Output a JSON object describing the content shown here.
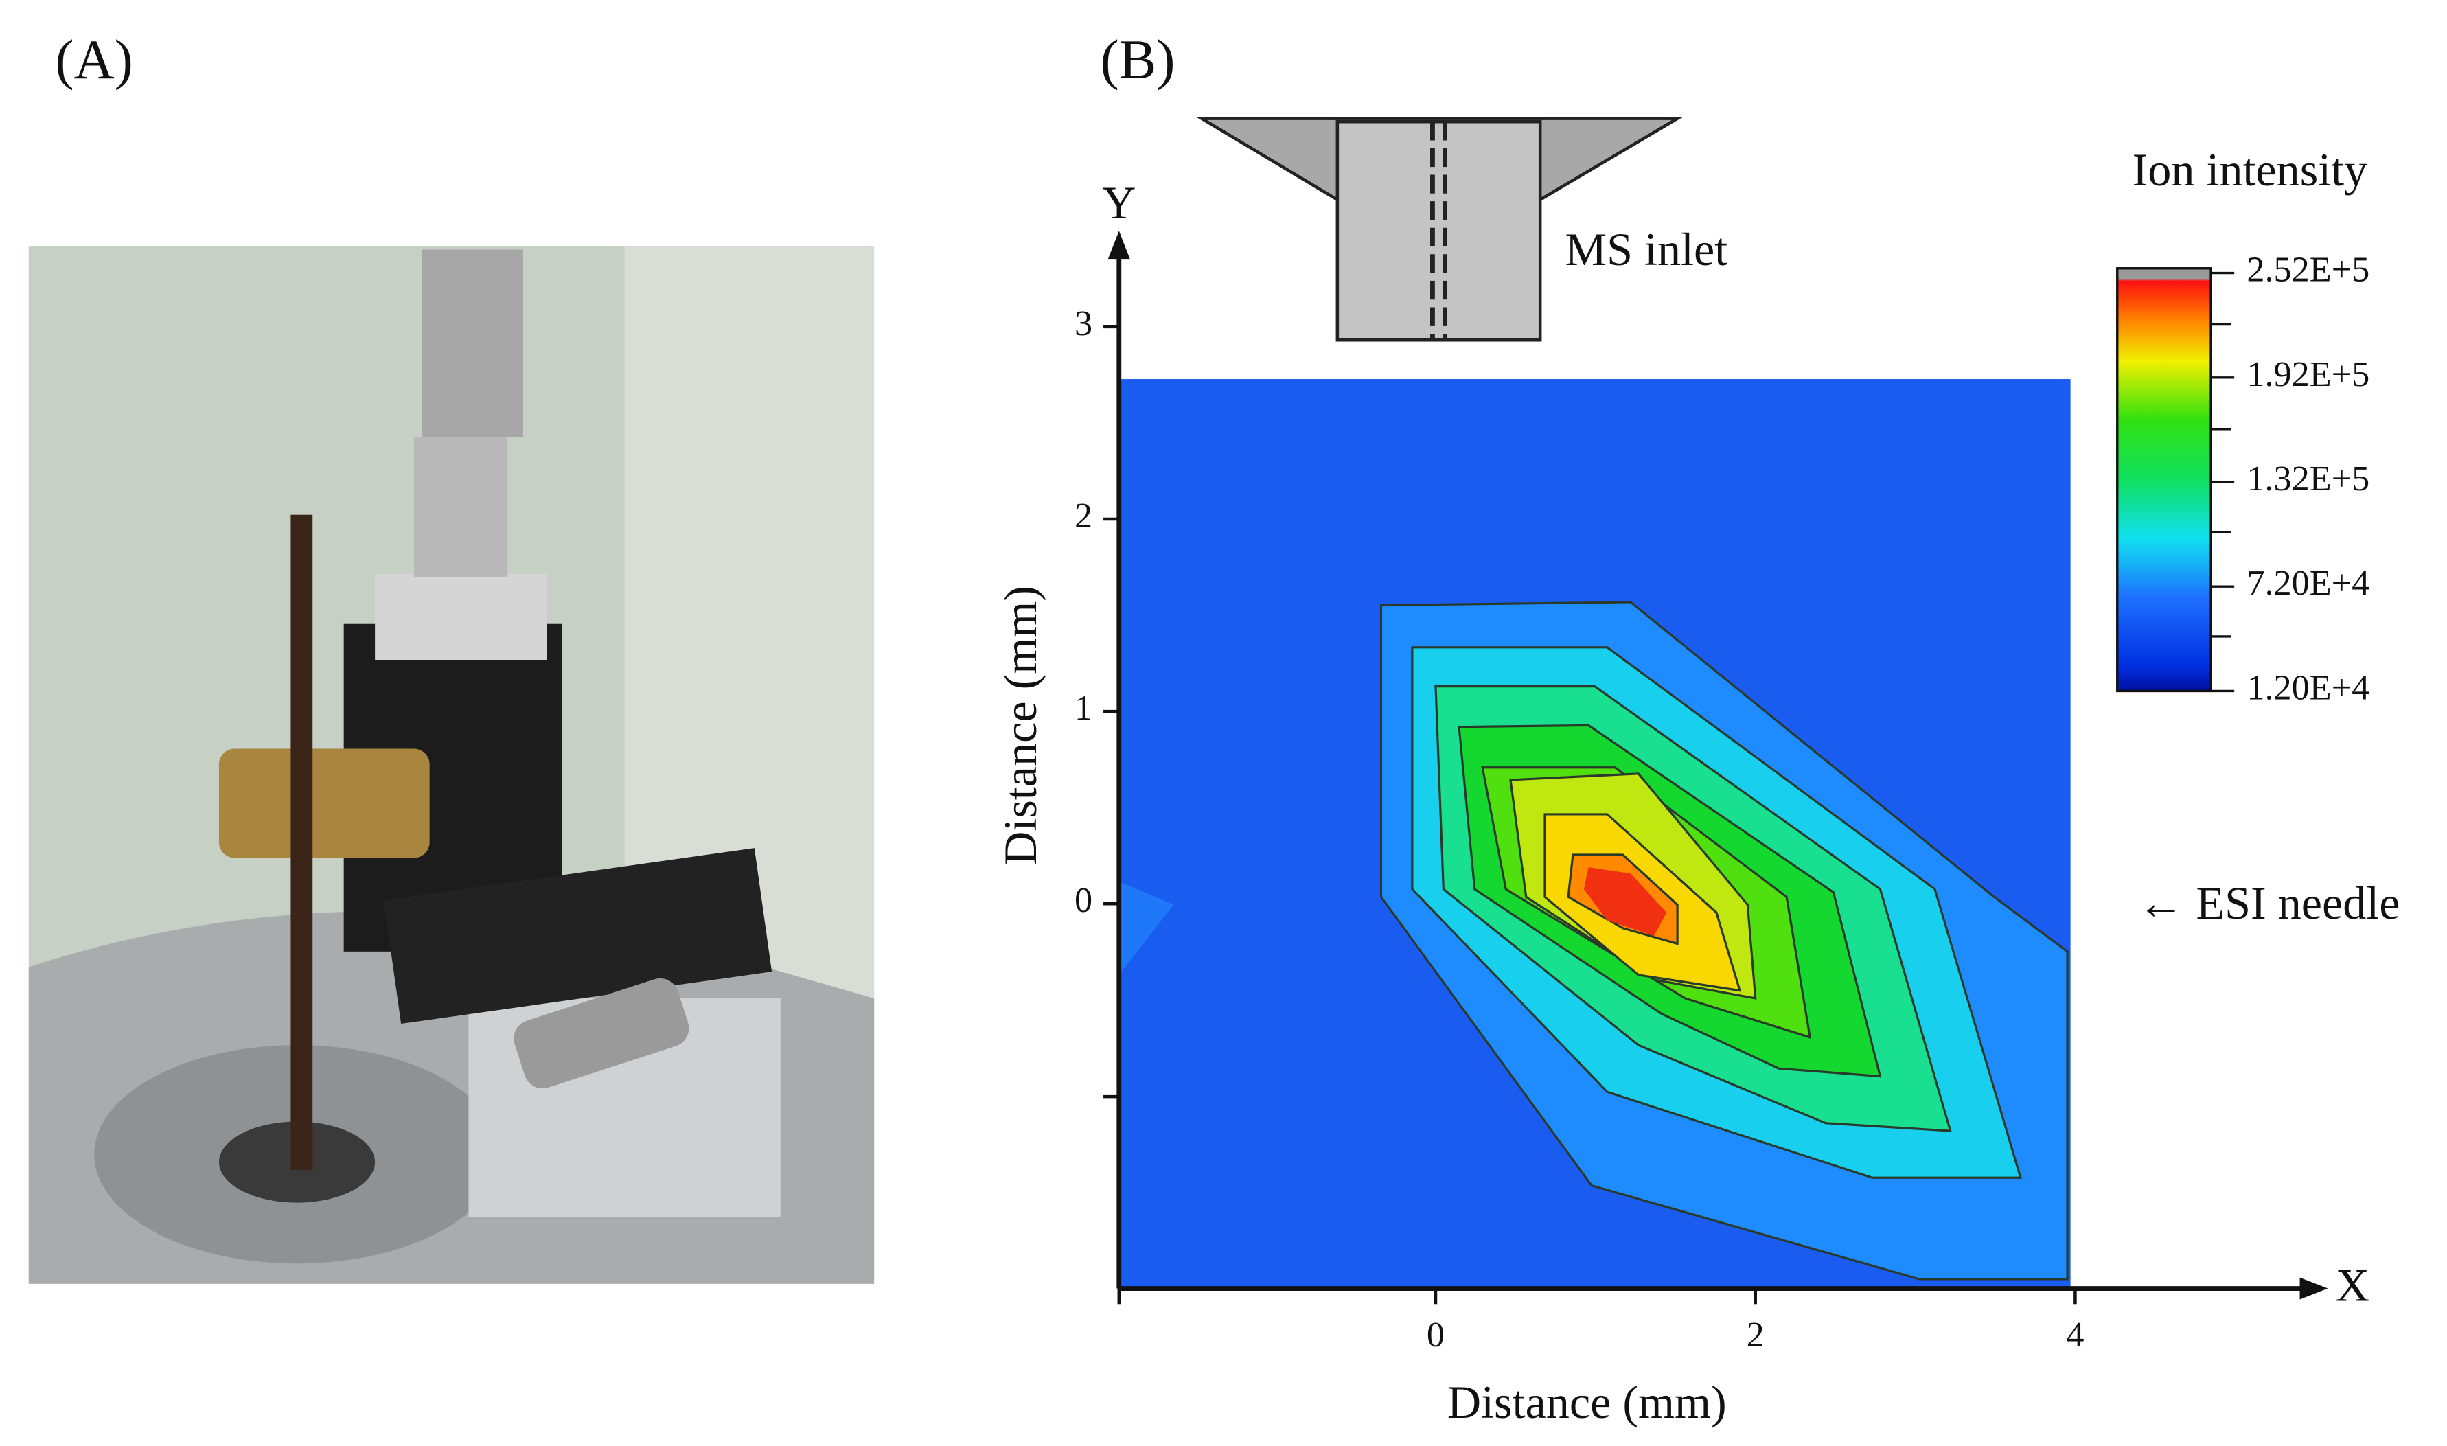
{
  "panels": {
    "a": "(A)",
    "b": "(B)"
  },
  "chart_data": {
    "type": "contour",
    "xlabel": "Distance (mm)",
    "ylabel": "Distance (mm)",
    "x_axis_letter": "X",
    "y_axis_letter": "Y",
    "xlim": [
      -2,
      5.6
    ],
    "ylim": [
      -2,
      3.5
    ],
    "xticks": [
      0,
      2,
      4
    ],
    "yticks": [
      0,
      1,
      2,
      3
    ],
    "annotations": [
      "MS inlet",
      "← ESI needle"
    ],
    "colorbar": {
      "title": "Ion intensity",
      "lim": [
        12000,
        252000
      ],
      "ticks": [
        {
          "value": 252000,
          "label": "2.52E+5"
        },
        {
          "value": 192000,
          "label": "1.92E+5"
        },
        {
          "value": 132000,
          "label": "1.32E+5"
        },
        {
          "value": 72000,
          "label": "7.20E+4"
        },
        {
          "value": 12000,
          "label": "1.20E+4"
        }
      ]
    }
  }
}
